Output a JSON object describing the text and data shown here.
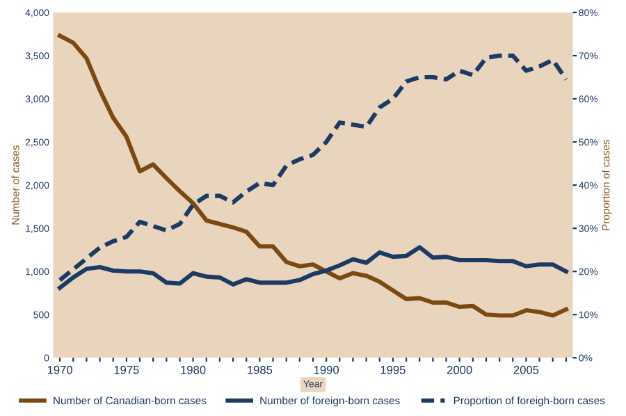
{
  "chart_data": {
    "type": "line",
    "xlabel": "Year",
    "ylabel": "Number of cases",
    "y2label": "Proportion of cases",
    "x": [
      1970,
      1971,
      1972,
      1973,
      1974,
      1975,
      1976,
      1977,
      1978,
      1979,
      1980,
      1981,
      1982,
      1983,
      1984,
      1985,
      1986,
      1987,
      1988,
      1989,
      1990,
      1991,
      1992,
      1993,
      1994,
      1995,
      1996,
      1997,
      1998,
      1999,
      2000,
      2001,
      2002,
      2003,
      2004,
      2005,
      2006,
      2007,
      2008
    ],
    "series": [
      {
        "name": "Number of Canadian-born cases",
        "color": "#7b4a12",
        "line_style": "solid",
        "values": [
          3730,
          3650,
          3470,
          3100,
          2780,
          2560,
          2160,
          2240,
          2080,
          1930,
          1790,
          1590,
          1550,
          1510,
          1460,
          1290,
          1290,
          1110,
          1060,
          1080,
          1000,
          920,
          980,
          950,
          880,
          780,
          680,
          690,
          640,
          640,
          590,
          600,
          500,
          490,
          490,
          550,
          530,
          490,
          560
        ]
      },
      {
        "name": "Number of foreign-born cases",
        "color": "#1b3a64",
        "line_style": "solid",
        "values": [
          810,
          930,
          1030,
          1050,
          1010,
          1000,
          1000,
          980,
          870,
          860,
          980,
          940,
          930,
          850,
          910,
          870,
          870,
          870,
          900,
          970,
          1010,
          1070,
          1140,
          1100,
          1220,
          1170,
          1180,
          1280,
          1160,
          1170,
          1130,
          1130,
          1130,
          1120,
          1120,
          1060,
          1080,
          1080,
          1000
        ]
      },
      {
        "name": "Proportion of foreigh-born cases",
        "color": "#1b3a64",
        "line_style": "dashed",
        "axis": "y2",
        "values": [
          18,
          20.5,
          23,
          25.5,
          27,
          28,
          31.5,
          30.5,
          29.5,
          31,
          35.5,
          37.5,
          37.5,
          36,
          38.5,
          40.5,
          40,
          44.5,
          46,
          47,
          50,
          54.5,
          54,
          53.5,
          58,
          60,
          64,
          65,
          65,
          64.5,
          66.5,
          65.5,
          69.5,
          70,
          70,
          66.5,
          67.5,
          69,
          64.5
        ]
      }
    ],
    "xlim": [
      1969.5,
      2008.5
    ],
    "xticks": [
      1970,
      {
        "value": 1971,
        "label": null
      },
      {
        "value": 1972,
        "label": null
      },
      {
        "value": 1973,
        "label": null
      },
      {
        "value": 1974,
        "label": null
      },
      1975,
      {
        "value": 1976,
        "label": null
      },
      {
        "value": 1977,
        "label": null
      },
      {
        "value": 1978,
        "label": null
      },
      {
        "value": 1979,
        "label": null
      },
      1980,
      {
        "value": 1981,
        "label": null
      },
      {
        "value": 1982,
        "label": null
      },
      {
        "value": 1983,
        "label": null
      },
      {
        "value": 1984,
        "label": null
      },
      1985,
      {
        "value": 1986,
        "label": null
      },
      {
        "value": 1987,
        "label": null
      },
      {
        "value": 1988,
        "label": null
      },
      {
        "value": 1989,
        "label": null
      },
      1990,
      {
        "value": 1991,
        "label": null
      },
      {
        "value": 1992,
        "label": null
      },
      {
        "value": 1993,
        "label": null
      },
      {
        "value": 1994,
        "label": null
      },
      1995,
      {
        "value": 1996,
        "label": null
      },
      {
        "value": 1997,
        "label": null
      },
      {
        "value": 1998,
        "label": null
      },
      {
        "value": 1999,
        "label": null
      },
      2000,
      {
        "value": 2001,
        "label": null
      },
      {
        "value": 2002,
        "label": null
      },
      {
        "value": 2003,
        "label": null
      },
      {
        "value": 2004,
        "label": null
      },
      2005,
      {
        "value": 2006,
        "label": null
      },
      {
        "value": 2007,
        "label": null
      },
      {
        "value": 2008,
        "label": null
      }
    ],
    "ylim": [
      0,
      4000
    ],
    "yticks": [
      0,
      {
        "value": 500,
        "label": "500"
      },
      {
        "value": 1000,
        "label": "1,000"
      },
      {
        "value": 1500,
        "label": "1,500"
      },
      {
        "value": 2000,
        "label": "2,000"
      },
      {
        "value": 2500,
        "label": "2,500"
      },
      {
        "value": 3000,
        "label": "3,000"
      },
      {
        "value": 3500,
        "label": "3,500"
      },
      {
        "value": 4000,
        "label": "4,000"
      }
    ],
    "y2lim": [
      0,
      80
    ],
    "y2ticks": [
      {
        "value": 0,
        "label": "0%"
      },
      {
        "value": 10,
        "label": "10%"
      },
      {
        "value": 20,
        "label": "20%"
      },
      {
        "value": 30,
        "label": "30%"
      },
      {
        "value": 40,
        "label": "40%"
      },
      {
        "value": 50,
        "label": "50%"
      },
      {
        "value": 60,
        "label": "60%"
      },
      {
        "value": 70,
        "label": "70%"
      },
      {
        "value": 80,
        "label": "80%"
      }
    ],
    "grid": false,
    "legend": "bottom",
    "marker": "none"
  }
}
